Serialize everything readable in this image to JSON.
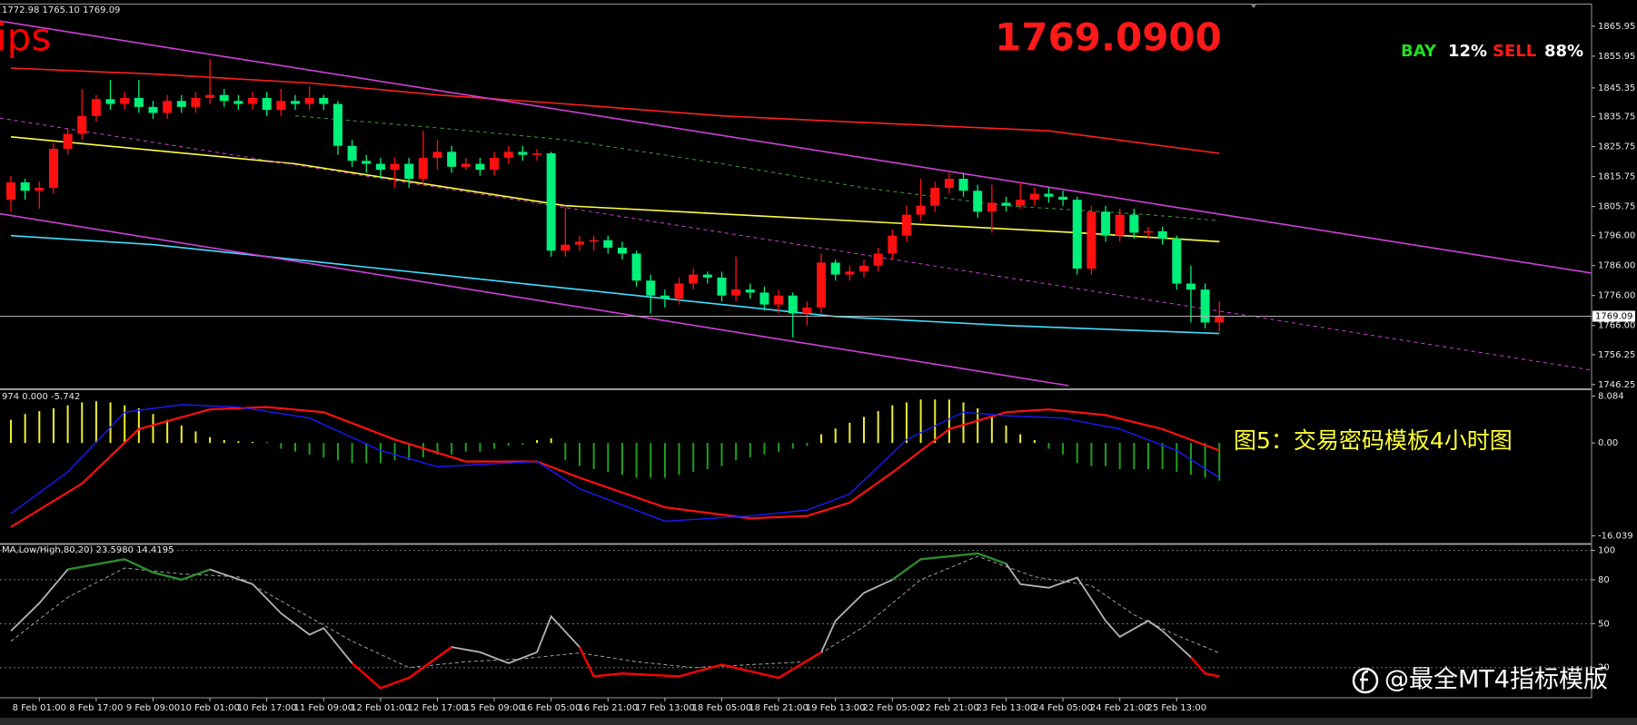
{
  "chart_data": [
    {
      "type": "candlestick",
      "header": "1772.98 1765.10 1769.09",
      "categories": [
        null,
        null,
        "8 Feb 01:00",
        null,
        null,
        null,
        "8 Feb 17:00",
        null,
        null,
        null,
        "9 Feb 09:00",
        null,
        null,
        null,
        "10 Feb 01:00",
        null,
        null,
        null,
        "10 Feb 17:00",
        null,
        null,
        null,
        "11 Feb 09:00",
        null,
        null,
        null,
        "12 Feb 01:00",
        null,
        null,
        null,
        "12 Feb 17:00",
        null,
        null,
        null,
        "15 Feb 09:00",
        null,
        null,
        null,
        "16 Feb 05:00",
        null,
        null,
        null,
        "16 Feb 21:00",
        null,
        null,
        null,
        "17 Feb 13:00",
        null,
        null,
        null,
        "18 Feb 05:00",
        null,
        null,
        null,
        "18 Feb 21:00",
        null,
        null,
        null,
        "19 Feb 13:00",
        null,
        null,
        null,
        "22 Feb 05:00",
        null,
        null,
        null,
        "22 Feb 21:00",
        null,
        null,
        null,
        "23 Feb 13:00",
        null,
        null,
        null,
        "24 Feb 05:00",
        null,
        null,
        null,
        "24 Feb 21:00",
        null,
        null,
        null,
        "25 Feb 13:00",
        null,
        null,
        null
      ],
      "open": [
        1808,
        1813.8,
        1811,
        1812,
        1825,
        1830,
        1836,
        1841.6,
        1840,
        1842,
        1839,
        1837,
        1841,
        1839,
        1842,
        1843,
        1841,
        1840,
        1842,
        1838,
        1841,
        1840,
        1842,
        1840,
        1826,
        1821,
        1820,
        1818,
        1820,
        1815,
        1822,
        1824,
        1819,
        1820,
        1818,
        1822,
        1824,
        1823,
        1823.5,
        1791,
        1793,
        1794,
        1794.5,
        1792,
        1790,
        1781,
        1776,
        1775,
        1780,
        1783,
        1782,
        1776,
        1778,
        1777,
        1773,
        1776,
        1770,
        1772,
        1787,
        1783,
        1784,
        1786,
        1790,
        1796,
        1803,
        1806,
        1812,
        1815,
        1811,
        1804,
        1807,
        1806,
        1808,
        1810,
        1809,
        1808,
        1785,
        1804,
        1796,
        1803,
        1797,
        1797.5,
        1795,
        1780,
        1778,
        1767
      ],
      "high": [
        1816,
        1815,
        1814,
        1827,
        1832,
        1845,
        1843,
        1848,
        1844,
        1848,
        1841,
        1843,
        1843,
        1844,
        1855,
        1845,
        1843,
        1844,
        1844,
        1845,
        1843,
        1846,
        1843,
        1841,
        1828,
        1823,
        1822,
        1822,
        1822,
        1831,
        1828,
        1826,
        1822,
        1822,
        1824,
        1826,
        1826,
        1825,
        1824,
        1806,
        1796,
        1796,
        1796,
        1794,
        1791,
        1783,
        1778,
        1782,
        1785,
        1784,
        1784,
        1789,
        1780,
        1779,
        1778,
        1777,
        1774,
        1790,
        1788,
        1786,
        1788,
        1792,
        1798,
        1806,
        1815,
        1814,
        1817,
        1817,
        1813,
        1813,
        1809,
        1814,
        1812,
        1812,
        1811,
        1809,
        1806,
        1806,
        1805,
        1805,
        1799,
        1799,
        1796,
        1786,
        1780,
        1774
      ],
      "low": [
        1804,
        1808,
        1805,
        1810,
        1823,
        1828,
        1834,
        1838,
        1838,
        1837,
        1835,
        1835,
        1837,
        1837,
        1840,
        1839,
        1838,
        1838,
        1836,
        1836,
        1838,
        1838,
        1838,
        1823,
        1819,
        1817,
        1815,
        1812,
        1812,
        1813,
        1818,
        1817,
        1818,
        1816,
        1816,
        1820,
        1821,
        1821,
        1789,
        1789,
        1791,
        1791,
        1790,
        1788,
        1779,
        1770,
        1772,
        1773,
        1778,
        1780,
        1774,
        1774,
        1775,
        1771,
        1770,
        1762,
        1766,
        1770,
        1781,
        1781,
        1782,
        1784,
        1788,
        1794,
        1801,
        1804,
        1810,
        1809,
        1802,
        1797,
        1804,
        1805,
        1806,
        1807,
        1806,
        1783,
        1783,
        1794,
        1794,
        1795,
        1795,
        1793,
        1778,
        1767,
        1765,
        1764
      ],
      "close": [
        1813.8,
        1811,
        1812,
        1825,
        1830,
        1836,
        1841.6,
        1840,
        1842,
        1839,
        1837,
        1841,
        1839,
        1842,
        1843,
        1841,
        1840,
        1842,
        1838,
        1841,
        1840,
        1842,
        1840,
        1826,
        1821,
        1820,
        1818,
        1820,
        1815,
        1822,
        1824,
        1819,
        1820,
        1818,
        1822,
        1824,
        1823,
        1823.5,
        1791,
        1793,
        1794,
        1794.5,
        1792,
        1790,
        1781,
        1776,
        1775,
        1780,
        1783,
        1782,
        1776,
        1778,
        1777,
        1773,
        1776,
        1770,
        1772,
        1787,
        1783,
        1784,
        1786,
        1790,
        1796,
        1803,
        1806,
        1812,
        1815,
        1811,
        1804,
        1807,
        1806,
        1808,
        1810,
        1809,
        1808,
        1785,
        1804,
        1796,
        1803,
        1797,
        1797.5,
        1795,
        1780,
        1778,
        1767,
        1769.09
      ],
      "up_color": "#ff1010",
      "down_color": "#00f07a",
      "overlays": [
        {
          "color": "#ff2020",
          "style": "solid",
          "x": [
            0,
            10,
            21,
            30,
            39,
            50,
            59,
            73,
            85
          ],
          "values": [
            1852,
            1850,
            1847,
            1843,
            1840,
            1836,
            1834,
            1831,
            1823.5
          ]
        },
        {
          "color": "#ffff40",
          "style": "solid",
          "x": [
            0,
            20,
            39,
            55,
            63,
            75,
            85
          ],
          "values": [
            1829,
            1820,
            1806,
            1802,
            1800,
            1797,
            1794
          ]
        },
        {
          "color": "#40e0ff",
          "style": "solid",
          "x": [
            0,
            10,
            20,
            30,
            40,
            50,
            58,
            70,
            85
          ],
          "values": [
            1796,
            1793,
            1788,
            1783,
            1778,
            1773,
            1769,
            1766,
            1763.3
          ]
        },
        {
          "color": "#3aa03a",
          "style": "dashed",
          "x": [
            20,
            30,
            39,
            50,
            60,
            70,
            80,
            85
          ],
          "values": [
            1836,
            1832,
            1828,
            1820,
            1812,
            1806,
            1803,
            1801
          ]
        },
        {
          "color": "#d040d8",
          "style": "solid",
          "x": [
            -0.77,
            111.2
          ],
          "values": [
            1867.7,
            1783.5
          ]
        },
        {
          "color": "#d040d8",
          "style": "dashed",
          "x": [
            -0.77,
            111.2
          ],
          "values": [
            1835.3,
            1751.1
          ]
        },
        {
          "color": "#d040d8",
          "style": "solid",
          "x": [
            -0.77,
            74.4
          ],
          "values": [
            1803.3,
            1745.9
          ]
        }
      ],
      "last_price": 1769.09,
      "annotations": [
        {
          "text": "ips",
          "color": "#ff0000"
        },
        {
          "text": "1769.0900",
          "color": "#ff1a1a"
        },
        {
          "text": "BAY",
          "color": "#22dd22"
        },
        {
          "text": "12%",
          "color": "#ffffff"
        },
        {
          "text": "SELL",
          "color": "#ff1a1a"
        },
        {
          "text": "88%",
          "color": "#ffffff"
        }
      ],
      "ylim": [
        1745.6,
        1872.9
      ],
      "yticks": [
        1865.95,
        1855.95,
        1845.35,
        1835.75,
        1825.75,
        1815.75,
        1805.75,
        {
          "value": 1796,
          "label": "1796.00"
        },
        {
          "value": 1786,
          "label": "1786.00"
        },
        {
          "value": 1776,
          "label": "1776.00"
        },
        {
          "value": 1766,
          "label": "1766.00"
        },
        1756.25,
        1746.25
      ]
    },
    {
      "type": "oscillator",
      "header": "974 0.000 -5.742",
      "values": [
        4,
        5,
        5.5,
        6,
        6.5,
        7,
        7.2,
        7,
        6.5,
        6,
        5,
        4,
        3,
        2,
        1,
        0.5,
        0.3,
        0.2,
        0.1,
        -1,
        -1.5,
        -2,
        -2.5,
        -3,
        -3.5,
        -3.5,
        -3.5,
        -3,
        -3,
        -2.5,
        -2,
        -2,
        -1.5,
        -1.5,
        -1,
        -0.5,
        -0.3,
        0.5,
        0.8,
        -3,
        -4,
        -4.5,
        -5,
        -5.5,
        -6,
        -6,
        -6,
        -5.5,
        -5,
        -4.5,
        -4,
        -3,
        -2.5,
        -2,
        -1.5,
        -1,
        -0.5,
        1.5,
        2.5,
        3.5,
        4.5,
        5.5,
        6.5,
        7,
        7.5,
        7.5,
        7.5,
        7,
        6,
        4.5,
        3,
        1.5,
        0.5,
        -1,
        -2,
        -3.5,
        -4,
        -4,
        -4.5,
        -4.5,
        -4.5,
        -4.5,
        -5,
        -5.5,
        -6,
        -6.5
      ],
      "positive_color": "#f0f030",
      "negative_color": "#1ea01e",
      "series": [
        {
          "color": "#ff1010",
          "x": [
            0,
            5,
            9,
            14,
            18,
            22,
            27,
            32,
            37,
            40,
            46,
            52,
            56,
            59,
            62,
            66,
            70,
            73,
            77,
            81,
            85
          ],
          "values": [
            -14.5,
            -7,
            2.4,
            5.8,
            6.2,
            5.3,
            0.6,
            -3.2,
            -3.2,
            -6,
            -11.1,
            -13,
            -12.6,
            -10.3,
            -5.1,
            2.4,
            5.3,
            5.8,
            4.8,
            2.4,
            -1.3
          ]
        },
        {
          "color": "#1a1aff",
          "x": [
            0,
            4,
            8,
            12,
            16,
            21,
            26,
            30,
            37,
            40,
            46,
            52,
            56,
            59,
            63,
            67,
            70,
            74,
            78,
            82,
            85
          ],
          "values": [
            -12.2,
            -5,
            5.3,
            6.6,
            6.2,
            4.3,
            -1.3,
            -4.1,
            -3.2,
            -7.9,
            -13.5,
            -12.6,
            -11.6,
            -8.8,
            0.6,
            5.3,
            4.7,
            4.3,
            2.4,
            -1.3,
            -6
          ]
        }
      ],
      "annotations": [
        {
          "text": "图5：交易密码模板4小时图",
          "color": "#ffff33"
        }
      ],
      "ylim": [
        -17.2,
        8.8
      ],
      "yticks": [
        8.084,
        {
          "value": 0,
          "label": "0.00"
        },
        -16.039
      ]
    },
    {
      "type": "stochastic",
      "header": "MA,Low/High,80,20) 23.5980 14.4195",
      "series": [
        {
          "color": "#b4b4b4",
          "style": "solid",
          "x": [
            0,
            2,
            4,
            8,
            10,
            12,
            14,
            17,
            19,
            21,
            22,
            24,
            26,
            28,
            31,
            33,
            35,
            37,
            38,
            40,
            41,
            43,
            47,
            50,
            54,
            57,
            58,
            60,
            62,
            64,
            68,
            70,
            71,
            73,
            75,
            77,
            78,
            80,
            81,
            83,
            84,
            85
          ],
          "values": [
            45,
            64,
            87,
            94,
            85,
            80,
            87,
            77,
            57,
            42.5,
            47,
            23,
            6,
            13,
            34,
            30.5,
            23,
            30.5,
            55,
            34,
            14,
            16,
            14,
            22,
            13,
            30.5,
            52,
            71,
            80,
            94,
            98,
            91,
            77,
            74.5,
            81.5,
            52,
            41,
            52,
            45,
            27,
            16,
            14
          ]
        },
        {
          "color": "#a0a0a0",
          "style": "dashed",
          "x": [
            0,
            4,
            8,
            12,
            16,
            20,
            24,
            28,
            32,
            36,
            40,
            44,
            48,
            52,
            56,
            60,
            64,
            68,
            72,
            76,
            79,
            82,
            85
          ],
          "values": [
            38,
            68,
            88,
            84,
            82,
            60,
            38,
            20,
            24,
            26,
            30,
            24,
            20,
            22,
            24,
            48,
            80,
            96,
            82,
            76,
            56,
            42,
            30
          ]
        }
      ],
      "overbought": 80,
      "oversold": 20,
      "overbought_color": "#2e8b2e",
      "oversold_color": "#ff0000",
      "grid": true,
      "ylim": [
        0,
        103.5
      ],
      "yticks": [
        100,
        80,
        50,
        20
      ]
    }
  ],
  "watermark": "@最全MT4指标模版"
}
